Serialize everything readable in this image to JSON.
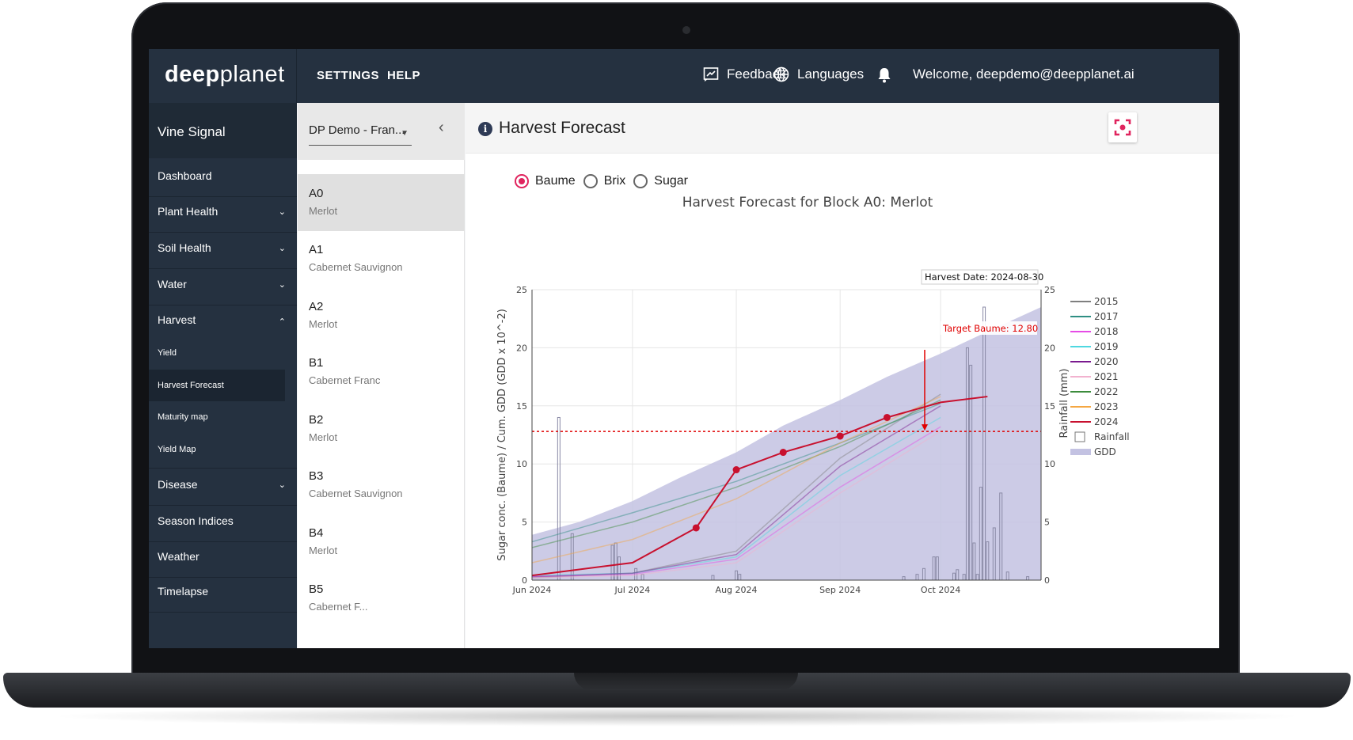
{
  "app": {
    "logo_bold": "deep",
    "logo_light": "planet"
  },
  "topnav": {
    "settings": "SETTINGS",
    "help": "HELP",
    "feedback": "Feedback",
    "languages": "Languages",
    "welcome": "Welcome, deepdemo@deepplanet.ai"
  },
  "sidebar": {
    "title": "Vine Signal",
    "items": [
      {
        "label": "Dashboard"
      },
      {
        "label": "Plant Health"
      },
      {
        "label": "Soil Health"
      },
      {
        "label": "Water"
      },
      {
        "label": "Harvest"
      },
      {
        "label": "Yield"
      },
      {
        "label": "Harvest Forecast"
      },
      {
        "label": "Maturity map"
      },
      {
        "label": "Yield Map"
      },
      {
        "label": "Disease"
      },
      {
        "label": "Season Indices"
      },
      {
        "label": "Weather"
      },
      {
        "label": "Timelapse"
      }
    ]
  },
  "blocks": {
    "farm": "DP Demo - Fran...",
    "list": [
      {
        "code": "A0",
        "variety": "Merlot"
      },
      {
        "code": "A1",
        "variety": "Cabernet Sauvignon"
      },
      {
        "code": "A2",
        "variety": "Merlot"
      },
      {
        "code": "B1",
        "variety": "Cabernet Franc"
      },
      {
        "code": "B2",
        "variety": "Merlot"
      },
      {
        "code": "B3",
        "variety": "Cabernet Sauvignon"
      },
      {
        "code": "B4",
        "variety": "Merlot"
      },
      {
        "code": "B5",
        "variety": "Cabernet F..."
      }
    ]
  },
  "main": {
    "title": "Harvest Forecast",
    "options": [
      "Baume",
      "Brix",
      "Sugar"
    ],
    "selected": "Baume"
  },
  "chart_data": {
    "type": "line",
    "title": "Harvest Forecast for Block A0: Merlot",
    "ylabel": "Sugar conc. (Baume) / Cum. GDD (GDD x 10^-2)",
    "y2label": "Rainfall (mm)",
    "x_ticks": [
      "Jun 2024",
      "Jul 2024",
      "Aug 2024",
      "Sep 2024",
      "Oct 2024"
    ],
    "y_ticks": [
      0,
      5,
      10,
      15,
      20,
      25
    ],
    "y2_ticks": [
      0,
      5,
      10,
      15,
      20,
      25
    ],
    "ylim": [
      0,
      25
    ],
    "y2lim": [
      0,
      25
    ],
    "xlim": [
      "2024-06-01",
      "2024-10-31"
    ],
    "target_line": {
      "value": 12.8,
      "label": "Target Baume: 12.80"
    },
    "harvest_annotation": {
      "date": "2024-08-30",
      "label": "Harvest Date: 2024-08-30"
    },
    "gdd": {
      "x": [
        "2024-06-01",
        "2024-06-15",
        "2024-07-01",
        "2024-07-15",
        "2024-08-01",
        "2024-08-15",
        "2024-09-01",
        "2024-09-15",
        "2024-10-01",
        "2024-10-15",
        "2024-10-31"
      ],
      "y": [
        3.9,
        5.0,
        6.8,
        8.8,
        11.0,
        13.3,
        15.5,
        17.5,
        19.5,
        21.4,
        23.5
      ]
    },
    "rainfall": {
      "x": [
        "2024-06-09",
        "2024-06-13",
        "2024-06-25",
        "2024-06-26",
        "2024-06-27",
        "2024-07-02",
        "2024-07-04",
        "2024-07-25",
        "2024-08-01",
        "2024-08-02",
        "2024-09-20",
        "2024-09-24",
        "2024-09-26",
        "2024-09-29",
        "2024-09-30",
        "2024-10-05",
        "2024-10-06",
        "2024-10-08",
        "2024-10-09",
        "2024-10-10",
        "2024-10-11",
        "2024-10-12",
        "2024-10-13",
        "2024-10-14",
        "2024-10-15",
        "2024-10-17",
        "2024-10-19",
        "2024-10-21",
        "2024-10-27"
      ],
      "y": [
        14.0,
        4.0,
        3.0,
        3.2,
        2.0,
        1.0,
        0.5,
        0.4,
        0.8,
        0.5,
        0.3,
        0.5,
        1.0,
        2.0,
        2.0,
        0.6,
        0.9,
        0.5,
        20.0,
        18.5,
        3.2,
        0.5,
        8.0,
        23.5,
        3.3,
        4.5,
        7.5,
        0.7,
        0.3
      ]
    },
    "series": [
      {
        "name": "2015",
        "color": "#7f7f7f",
        "x": [
          "2024-06-01",
          "2024-07-01",
          "2024-08-01",
          "2024-09-01",
          "2024-10-01"
        ],
        "y": [
          0.2,
          0.6,
          2.5,
          10.5,
          16.0
        ]
      },
      {
        "name": "2017",
        "color": "#2f8f83",
        "x": [
          "2024-06-01",
          "2024-07-01",
          "2024-08-01",
          "2024-09-01",
          "2024-10-01"
        ],
        "y": [
          3.3,
          5.8,
          8.5,
          11.8,
          15.2
        ]
      },
      {
        "name": "2018",
        "color": "#e64ce6",
        "x": [
          "2024-06-01",
          "2024-07-01",
          "2024-08-01",
          "2024-09-01",
          "2024-10-01"
        ],
        "y": [
          0.3,
          0.5,
          1.8,
          8.0,
          13.2
        ]
      },
      {
        "name": "2019",
        "color": "#4fd8e0",
        "x": [
          "2024-06-01",
          "2024-07-01",
          "2024-08-01",
          "2024-09-01",
          "2024-10-01"
        ],
        "y": [
          0.4,
          0.6,
          2.0,
          9.0,
          14.0
        ]
      },
      {
        "name": "2020",
        "color": "#7a1a8f",
        "x": [
          "2024-06-01",
          "2024-07-01",
          "2024-08-01",
          "2024-09-01",
          "2024-10-01"
        ],
        "y": [
          0.3,
          0.6,
          2.2,
          9.8,
          15.0
        ]
      },
      {
        "name": "2021",
        "color": "#f2b2cf",
        "x": [
          "2024-06-01",
          "2024-07-01",
          "2024-08-01",
          "2024-09-01",
          "2024-10-01"
        ],
        "y": [
          0.2,
          0.4,
          1.5,
          7.5,
          12.8
        ]
      },
      {
        "name": "2022",
        "color": "#3c8c3c",
        "x": [
          "2024-06-01",
          "2024-07-01",
          "2024-08-01",
          "2024-09-01",
          "2024-10-01"
        ],
        "y": [
          2.8,
          5.0,
          8.0,
          11.5,
          15.5
        ]
      },
      {
        "name": "2023",
        "color": "#f5a742",
        "x": [
          "2024-06-01",
          "2024-07-01",
          "2024-08-01",
          "2024-09-01",
          "2024-10-01"
        ],
        "y": [
          1.5,
          3.5,
          7.0,
          11.8,
          15.8
        ]
      },
      {
        "name": "2024",
        "color": "#c8102e",
        "x": [
          "2024-06-01",
          "2024-07-01",
          "2024-07-20",
          "2024-08-01",
          "2024-08-15",
          "2024-09-01",
          "2024-09-15",
          "2024-10-01",
          "2024-10-15"
        ],
        "y": [
          0.4,
          1.5,
          4.5,
          9.5,
          11.0,
          12.4,
          14.0,
          15.3,
          15.8
        ]
      }
    ],
    "legend": [
      "2015",
      "2017",
      "2018",
      "2019",
      "2020",
      "2021",
      "2022",
      "2023",
      "2024",
      "Rainfall",
      "GDD"
    ],
    "legend_position": "right"
  }
}
